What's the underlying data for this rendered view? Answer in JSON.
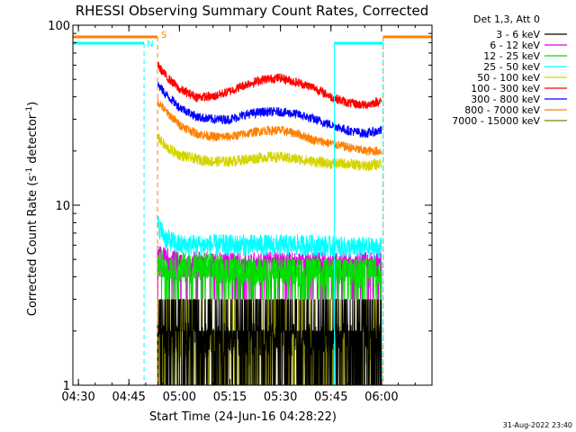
{
  "chart_data": {
    "type": "line",
    "title": "RHESSI Observing Summary Count Rates, Corrected",
    "xlabel": "Start Time (24-Jun-16 04:28:22)",
    "ylabel_main": "Corrected Count Rate (s",
    "ylabel_sup1": "-1",
    "ylabel_mid": " detector",
    "ylabel_sup2": "-1",
    "ylabel_end": ")",
    "yscale": "log",
    "ylim": [
      1,
      100
    ],
    "yticks": [
      {
        "value": 1,
        "label": "1"
      },
      {
        "value": 10,
        "label": "10"
      },
      {
        "value": 100,
        "label": "100"
      }
    ],
    "xlim_min": [
      268.37,
      375
    ],
    "xticks": [
      {
        "value": 270,
        "label": "04:30"
      },
      {
        "value": 285,
        "label": "04:45"
      },
      {
        "value": 300,
        "label": "05:00"
      },
      {
        "value": 315,
        "label": "05:15"
      },
      {
        "value": 330,
        "label": "05:30"
      },
      {
        "value": 345,
        "label": "05:45"
      },
      {
        "value": 360,
        "label": "06:00"
      }
    ],
    "legend_header": "Det 1,3, Att 0",
    "legend_position": "right",
    "series": [
      {
        "name": "3 - 6 keV",
        "color": "#000000"
      },
      {
        "name": "6 - 12 keV",
        "color": "#e000e0"
      },
      {
        "name": "12 - 25 keV",
        "color": "#00e000"
      },
      {
        "name": "25 - 50 keV",
        "color": "#00ffff"
      },
      {
        "name": "50 - 100 keV",
        "color": "#d4d400"
      },
      {
        "name": "100 - 300 keV",
        "color": "#ff0000"
      },
      {
        "name": "300 - 800 keV",
        "color": "#0000ff"
      },
      {
        "name": "800 - 7000 keV",
        "color": "#ff8000"
      },
      {
        "name": "7000 - 15000 keV",
        "color": "#808000"
      }
    ],
    "curves": [
      {
        "series": "100 - 300 keV",
        "points": [
          [
            293.5,
            60
          ],
          [
            296,
            52
          ],
          [
            300,
            44
          ],
          [
            305,
            40
          ],
          [
            310,
            40
          ],
          [
            315,
            43
          ],
          [
            320,
            47
          ],
          [
            325,
            50
          ],
          [
            330,
            51
          ],
          [
            335,
            48
          ],
          [
            340,
            45
          ],
          [
            345,
            40
          ],
          [
            350,
            37
          ],
          [
            355,
            36
          ],
          [
            360,
            38
          ]
        ]
      },
      {
        "series": "300 - 800 keV",
        "points": [
          [
            293.5,
            47
          ],
          [
            296,
            41
          ],
          [
            300,
            35
          ],
          [
            305,
            31
          ],
          [
            310,
            30
          ],
          [
            315,
            30
          ],
          [
            320,
            32
          ],
          [
            325,
            33
          ],
          [
            330,
            33
          ],
          [
            335,
            32
          ],
          [
            340,
            30
          ],
          [
            345,
            28
          ],
          [
            350,
            26
          ],
          [
            355,
            25
          ],
          [
            360,
            26
          ]
        ]
      },
      {
        "series": "800 - 7000 keV",
        "points": [
          [
            293.5,
            38
          ],
          [
            296,
            33
          ],
          [
            300,
            28
          ],
          [
            305,
            25
          ],
          [
            310,
            24
          ],
          [
            315,
            24
          ],
          [
            320,
            25
          ],
          [
            325,
            26
          ],
          [
            330,
            26
          ],
          [
            335,
            25
          ],
          [
            340,
            23
          ],
          [
            345,
            22
          ],
          [
            350,
            21
          ],
          [
            355,
            20
          ],
          [
            360,
            20
          ]
        ]
      },
      {
        "series": "50 - 100 keV",
        "points": [
          [
            293.5,
            24
          ],
          [
            296,
            21
          ],
          [
            300,
            19
          ],
          [
            305,
            18
          ],
          [
            310,
            17.5
          ],
          [
            315,
            17.5
          ],
          [
            320,
            18
          ],
          [
            325,
            18.5
          ],
          [
            330,
            18.5
          ],
          [
            335,
            18
          ],
          [
            340,
            17.5
          ],
          [
            345,
            17
          ],
          [
            350,
            17
          ],
          [
            355,
            16.5
          ],
          [
            360,
            17
          ]
        ]
      },
      {
        "series": "25 - 50 keV",
        "points": [
          [
            293.5,
            7.8
          ],
          [
            296,
            6.5
          ],
          [
            300,
            6
          ],
          [
            310,
            6
          ],
          [
            320,
            6
          ],
          [
            330,
            6
          ],
          [
            340,
            6
          ],
          [
            350,
            5.8
          ],
          [
            360,
            5.8
          ]
        ]
      },
      {
        "series": "12 - 25 keV",
        "points": [
          [
            293.5,
            4.8
          ],
          [
            300,
            4.5
          ],
          [
            310,
            4.5
          ],
          [
            320,
            4.3
          ],
          [
            330,
            4.3
          ],
          [
            340,
            4.3
          ],
          [
            350,
            4.2
          ],
          [
            360,
            4.2
          ]
        ]
      },
      {
        "series": "6 - 12 keV",
        "points": [
          [
            293.5,
            5.5
          ],
          [
            300,
            5
          ],
          [
            310,
            5
          ],
          [
            320,
            5
          ],
          [
            330,
            5
          ],
          [
            340,
            5
          ],
          [
            350,
            5
          ],
          [
            360,
            5
          ]
        ]
      },
      {
        "series": "3 - 6 keV",
        "points": [
          [
            293.5,
            1.8
          ],
          [
            300,
            1.8
          ],
          [
            310,
            1.8
          ],
          [
            320,
            1.8
          ],
          [
            330,
            1.8
          ],
          [
            340,
            1.8
          ],
          [
            350,
            1.8
          ],
          [
            360,
            1.8
          ]
        ]
      },
      {
        "series": "7000 - 15000 keV",
        "points": [
          [
            293.5,
            1.6
          ],
          [
            300,
            1.6
          ],
          [
            310,
            1.6
          ],
          [
            320,
            1.6
          ],
          [
            330,
            1.6
          ],
          [
            340,
            1.6
          ],
          [
            350,
            1.6
          ],
          [
            360,
            1.6
          ]
        ]
      }
    ],
    "annotations": {
      "saa_label": "S",
      "night_label": "N",
      "saa_color": "#ff8000",
      "night_color": "#00ffff",
      "saa_intervals": [
        [
          268.37,
          293.5
        ],
        [
          360.5,
          375
        ]
      ],
      "night_intervals": [
        [
          268.37,
          289.5
        ],
        [
          346,
          360.5
        ]
      ]
    },
    "footer_date": "31-Aug-2022 23:40"
  }
}
